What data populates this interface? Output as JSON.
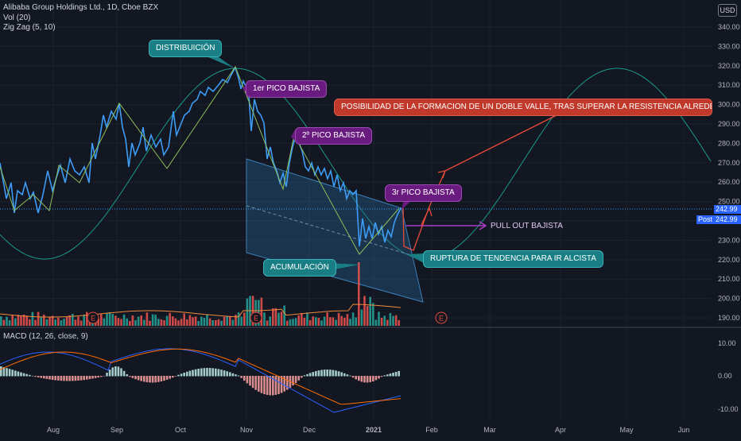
{
  "legend": {
    "title": "Alibaba Group Holdings Ltd., 1D, Cboe BZX",
    "volume": "Vol (20)",
    "zigzag": "Zig Zag (5, 10)"
  },
  "macd_label": "MACD (12, 26, close, 9)",
  "currency": "USD",
  "price_axis": [
    "340.00",
    "330.00",
    "320.00",
    "310.00",
    "300.00",
    "290.00",
    "280.00",
    "270.00",
    "260.00",
    "250.00",
    "240.00",
    "230.00",
    "220.00",
    "210.00",
    "200.00",
    "190.00"
  ],
  "macd_axis": [
    "10.00",
    "0.00",
    "-10.00"
  ],
  "time_axis": [
    "Aug",
    "Sep",
    "Oct",
    "Nov",
    "Dec",
    "2021",
    "Feb",
    "Mar",
    "Apr",
    "May",
    "Jun"
  ],
  "price_tags": {
    "last": "242.99",
    "post": "242.99",
    "post_label": "Post"
  },
  "earnings_marker": "E",
  "annotations": {
    "distribucion": "DISTRIBUICIÓN",
    "pico1": "1er PICO BAJISTA",
    "pico2": "2º PICO BAJISTA",
    "pico3": "3r PICO BAJISTA",
    "acumulacion": "ACUMULACIÓN",
    "ruptura": "RUPTURA DE TENDENCIA PARA IR ALCISTA",
    "posibilidad": "POSIBILIDAD DE LA FORMACION DE UN DOBLE VALLE, TRAS SUPERAR LA RESISTENCIA ALREDEDOR",
    "pullout": "PULL OUT BAJISTA"
  },
  "colors": {
    "price_line": "#3d9cf5",
    "zigzag": "#8fbf5a",
    "sine": "#1a9a8a",
    "volume_up": "#26a69a",
    "volume_down": "#ef5350",
    "macd_line": "#2962ff",
    "signal_line": "#ff6d00",
    "channel": "#2a6a9e"
  }
}
